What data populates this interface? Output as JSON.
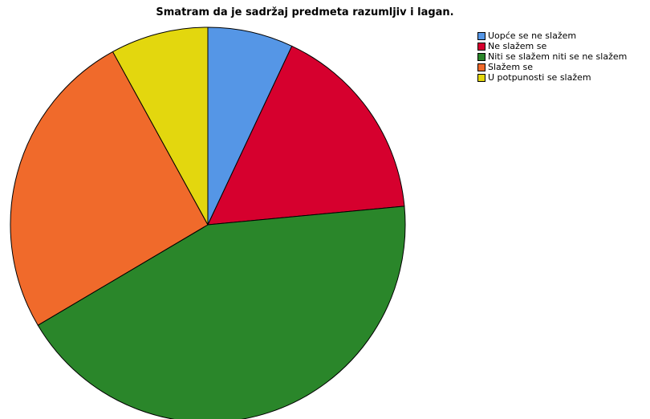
{
  "chart_data": {
    "type": "pie",
    "title": "Smatram da je sadržaj predmeta razumljiv i lagan.",
    "categories": [
      "Uopće se ne slažem",
      "Ne slažem se",
      "Niti se slažem niti se ne slažem",
      "Slažem se",
      "U potpunosti se slažem"
    ],
    "values": [
      7,
      16.5,
      43,
      25.5,
      8
    ],
    "colors": [
      "#5596e6",
      "#d6002e",
      "#2a862a",
      "#f06a2b",
      "#e3d70e"
    ],
    "start_angle_deg": 0,
    "direction": "clockwise",
    "legend_position": "top-right"
  }
}
